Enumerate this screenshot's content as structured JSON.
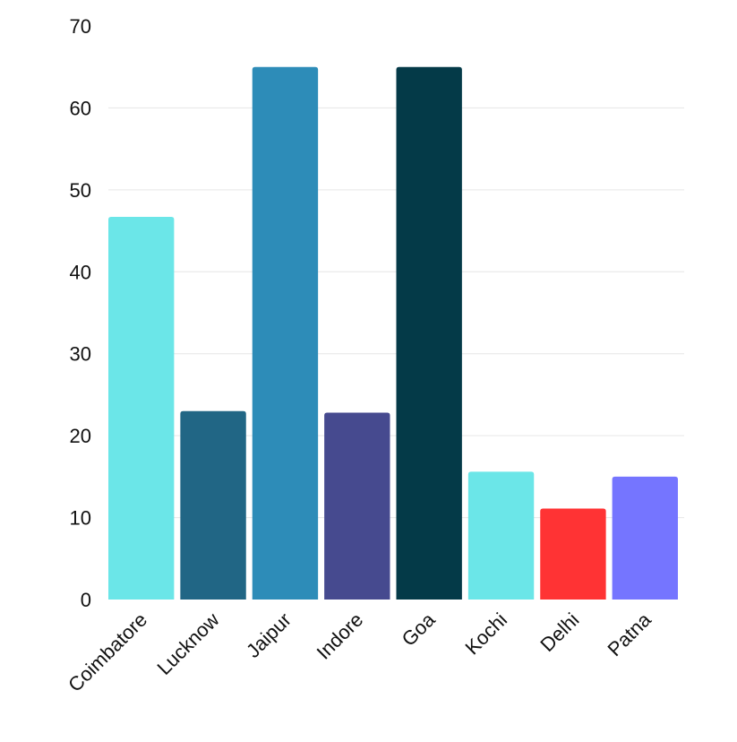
{
  "chart_data": {
    "type": "bar",
    "categories": [
      "Coimbatore",
      "Lucknow",
      "Jaipur",
      "Indore",
      "Goa",
      "Kochi",
      "Delhi",
      "Patna"
    ],
    "values": [
      46.7,
      23.0,
      65.0,
      22.8,
      65.0,
      15.6,
      11.1,
      15.0
    ],
    "colors": [
      "#6be6e8",
      "#216685",
      "#2d8cb8",
      "#464a8f",
      "#043a48",
      "#6be6e8",
      "#ff3334",
      "#7575ff"
    ],
    "title": "",
    "xlabel": "",
    "ylabel": "",
    "ylim": [
      0,
      70
    ],
    "yticks": [
      0,
      10,
      20,
      30,
      40,
      50,
      60,
      70
    ],
    "grid": true,
    "legend": "none"
  }
}
